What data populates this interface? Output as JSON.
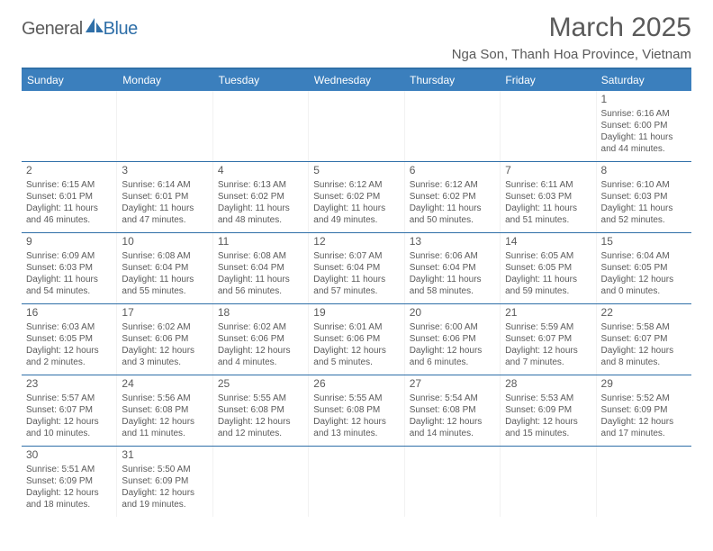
{
  "brand": {
    "general": "General",
    "blue": "Blue"
  },
  "title": "March 2025",
  "location": "Nga Son, Thanh Hoa Province, Vietnam",
  "colors": {
    "brand_blue": "#2f6fa8",
    "header_bg": "#3b7fbd",
    "text": "#5a5a5a",
    "row_border": "#2f6fa8"
  },
  "dayHeaders": [
    "Sunday",
    "Monday",
    "Tuesday",
    "Wednesday",
    "Thursday",
    "Friday",
    "Saturday"
  ],
  "weeks": [
    [
      null,
      null,
      null,
      null,
      null,
      null,
      {
        "n": "1",
        "sr": "Sunrise: 6:16 AM",
        "ss": "Sunset: 6:00 PM",
        "dl1": "Daylight: 11 hours",
        "dl2": "and 44 minutes."
      }
    ],
    [
      {
        "n": "2",
        "sr": "Sunrise: 6:15 AM",
        "ss": "Sunset: 6:01 PM",
        "dl1": "Daylight: 11 hours",
        "dl2": "and 46 minutes."
      },
      {
        "n": "3",
        "sr": "Sunrise: 6:14 AM",
        "ss": "Sunset: 6:01 PM",
        "dl1": "Daylight: 11 hours",
        "dl2": "and 47 minutes."
      },
      {
        "n": "4",
        "sr": "Sunrise: 6:13 AM",
        "ss": "Sunset: 6:02 PM",
        "dl1": "Daylight: 11 hours",
        "dl2": "and 48 minutes."
      },
      {
        "n": "5",
        "sr": "Sunrise: 6:12 AM",
        "ss": "Sunset: 6:02 PM",
        "dl1": "Daylight: 11 hours",
        "dl2": "and 49 minutes."
      },
      {
        "n": "6",
        "sr": "Sunrise: 6:12 AM",
        "ss": "Sunset: 6:02 PM",
        "dl1": "Daylight: 11 hours",
        "dl2": "and 50 minutes."
      },
      {
        "n": "7",
        "sr": "Sunrise: 6:11 AM",
        "ss": "Sunset: 6:03 PM",
        "dl1": "Daylight: 11 hours",
        "dl2": "and 51 minutes."
      },
      {
        "n": "8",
        "sr": "Sunrise: 6:10 AM",
        "ss": "Sunset: 6:03 PM",
        "dl1": "Daylight: 11 hours",
        "dl2": "and 52 minutes."
      }
    ],
    [
      {
        "n": "9",
        "sr": "Sunrise: 6:09 AM",
        "ss": "Sunset: 6:03 PM",
        "dl1": "Daylight: 11 hours",
        "dl2": "and 54 minutes."
      },
      {
        "n": "10",
        "sr": "Sunrise: 6:08 AM",
        "ss": "Sunset: 6:04 PM",
        "dl1": "Daylight: 11 hours",
        "dl2": "and 55 minutes."
      },
      {
        "n": "11",
        "sr": "Sunrise: 6:08 AM",
        "ss": "Sunset: 6:04 PM",
        "dl1": "Daylight: 11 hours",
        "dl2": "and 56 minutes."
      },
      {
        "n": "12",
        "sr": "Sunrise: 6:07 AM",
        "ss": "Sunset: 6:04 PM",
        "dl1": "Daylight: 11 hours",
        "dl2": "and 57 minutes."
      },
      {
        "n": "13",
        "sr": "Sunrise: 6:06 AM",
        "ss": "Sunset: 6:04 PM",
        "dl1": "Daylight: 11 hours",
        "dl2": "and 58 minutes."
      },
      {
        "n": "14",
        "sr": "Sunrise: 6:05 AM",
        "ss": "Sunset: 6:05 PM",
        "dl1": "Daylight: 11 hours",
        "dl2": "and 59 minutes."
      },
      {
        "n": "15",
        "sr": "Sunrise: 6:04 AM",
        "ss": "Sunset: 6:05 PM",
        "dl1": "Daylight: 12 hours",
        "dl2": "and 0 minutes."
      }
    ],
    [
      {
        "n": "16",
        "sr": "Sunrise: 6:03 AM",
        "ss": "Sunset: 6:05 PM",
        "dl1": "Daylight: 12 hours",
        "dl2": "and 2 minutes."
      },
      {
        "n": "17",
        "sr": "Sunrise: 6:02 AM",
        "ss": "Sunset: 6:06 PM",
        "dl1": "Daylight: 12 hours",
        "dl2": "and 3 minutes."
      },
      {
        "n": "18",
        "sr": "Sunrise: 6:02 AM",
        "ss": "Sunset: 6:06 PM",
        "dl1": "Daylight: 12 hours",
        "dl2": "and 4 minutes."
      },
      {
        "n": "19",
        "sr": "Sunrise: 6:01 AM",
        "ss": "Sunset: 6:06 PM",
        "dl1": "Daylight: 12 hours",
        "dl2": "and 5 minutes."
      },
      {
        "n": "20",
        "sr": "Sunrise: 6:00 AM",
        "ss": "Sunset: 6:06 PM",
        "dl1": "Daylight: 12 hours",
        "dl2": "and 6 minutes."
      },
      {
        "n": "21",
        "sr": "Sunrise: 5:59 AM",
        "ss": "Sunset: 6:07 PM",
        "dl1": "Daylight: 12 hours",
        "dl2": "and 7 minutes."
      },
      {
        "n": "22",
        "sr": "Sunrise: 5:58 AM",
        "ss": "Sunset: 6:07 PM",
        "dl1": "Daylight: 12 hours",
        "dl2": "and 8 minutes."
      }
    ],
    [
      {
        "n": "23",
        "sr": "Sunrise: 5:57 AM",
        "ss": "Sunset: 6:07 PM",
        "dl1": "Daylight: 12 hours",
        "dl2": "and 10 minutes."
      },
      {
        "n": "24",
        "sr": "Sunrise: 5:56 AM",
        "ss": "Sunset: 6:08 PM",
        "dl1": "Daylight: 12 hours",
        "dl2": "and 11 minutes."
      },
      {
        "n": "25",
        "sr": "Sunrise: 5:55 AM",
        "ss": "Sunset: 6:08 PM",
        "dl1": "Daylight: 12 hours",
        "dl2": "and 12 minutes."
      },
      {
        "n": "26",
        "sr": "Sunrise: 5:55 AM",
        "ss": "Sunset: 6:08 PM",
        "dl1": "Daylight: 12 hours",
        "dl2": "and 13 minutes."
      },
      {
        "n": "27",
        "sr": "Sunrise: 5:54 AM",
        "ss": "Sunset: 6:08 PM",
        "dl1": "Daylight: 12 hours",
        "dl2": "and 14 minutes."
      },
      {
        "n": "28",
        "sr": "Sunrise: 5:53 AM",
        "ss": "Sunset: 6:09 PM",
        "dl1": "Daylight: 12 hours",
        "dl2": "and 15 minutes."
      },
      {
        "n": "29",
        "sr": "Sunrise: 5:52 AM",
        "ss": "Sunset: 6:09 PM",
        "dl1": "Daylight: 12 hours",
        "dl2": "and 17 minutes."
      }
    ],
    [
      {
        "n": "30",
        "sr": "Sunrise: 5:51 AM",
        "ss": "Sunset: 6:09 PM",
        "dl1": "Daylight: 12 hours",
        "dl2": "and 18 minutes."
      },
      {
        "n": "31",
        "sr": "Sunrise: 5:50 AM",
        "ss": "Sunset: 6:09 PM",
        "dl1": "Daylight: 12 hours",
        "dl2": "and 19 minutes."
      },
      null,
      null,
      null,
      null,
      null
    ]
  ]
}
